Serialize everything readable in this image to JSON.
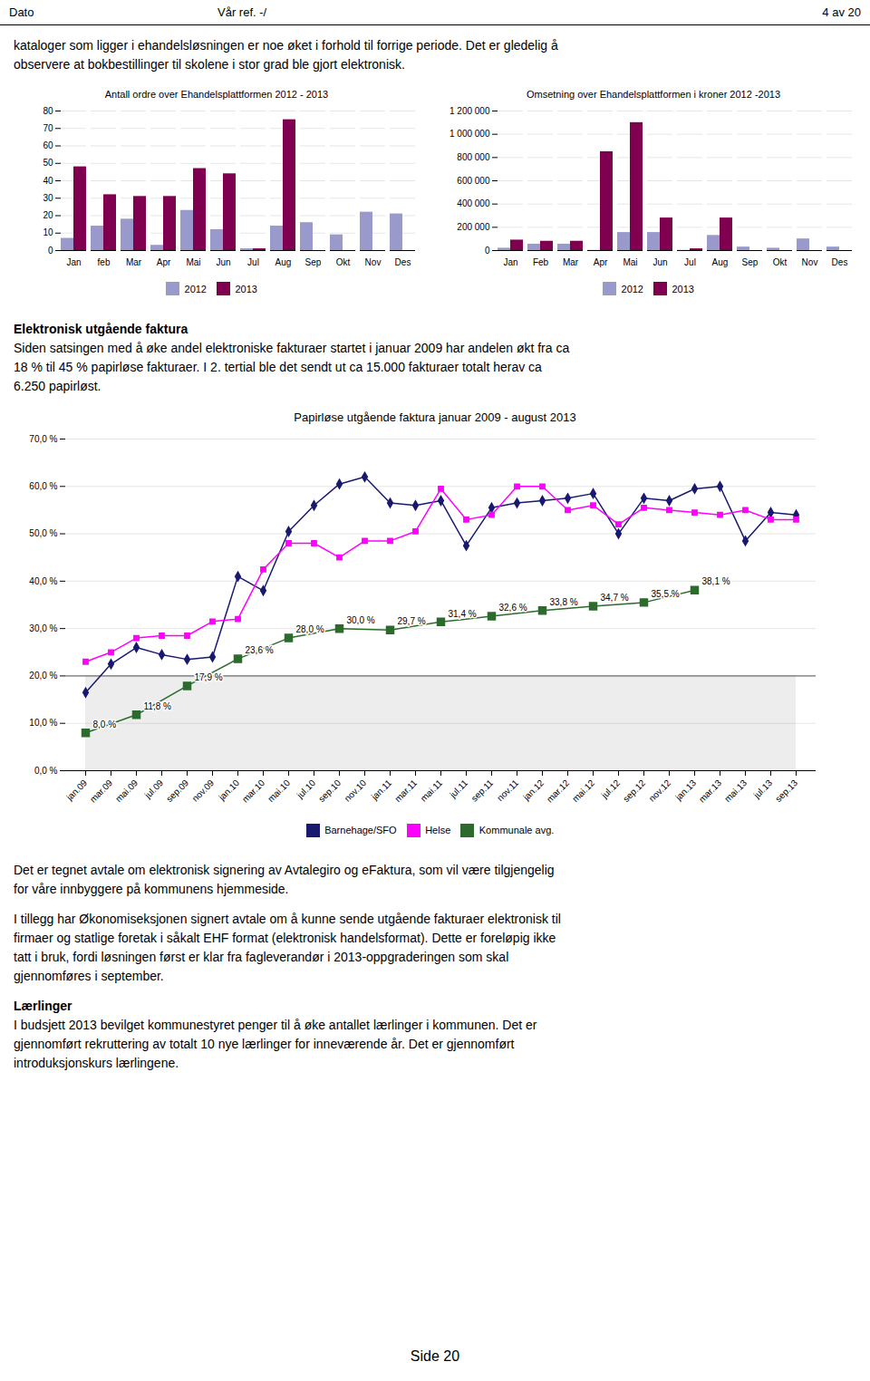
{
  "header_left": "Dato",
  "header_middle": "Vår ref. -/",
  "header_right": "4 av 20",
  "intro": [
    "kataloger som ligger i ehandelsløsningen er noe øket i forhold til forrige periode. Det er gledelig å",
    "observere at bokbestillinger til skolene i stor grad ble gjort elektronisk."
  ],
  "section_title": "Elektronisk utgående faktura",
  "section_text": [
    "Siden satsingen med å øke andel elektroniske fakturaer startet i januar 2009 har andelen økt fra ca",
    "18 % til 45 % papirløse fakturaer. I 2. tertial ble det sendt ut ca 15.000 fakturaer totalt herav ca",
    "6.250 papirløst."
  ],
  "bottom_paragraphs": [
    [
      "Det er tegnet avtale om elektronisk signering av Avtalegiro og eFaktura, som vil være tilgjengelig",
      "for våre innbyggere på kommunens hjemmeside."
    ],
    [
      "I tillegg har Økonomiseksjonen signert avtale om å kunne sende utgående fakturaer elektronisk til",
      "firmaer og statlige foretak i såkalt EHF format (elektronisk handelsformat). Dette er foreløpig ikke",
      "tatt i bruk, fordi løsningen først er klar fra fagleverandør i 2013-oppgraderingen som skal",
      "gjennomføres i september."
    ]
  ],
  "laerlinger_title": "Lærlinger",
  "laerlinger_text": [
    "I budsjett 2013 bevilget kommunestyret penger til å øke antallet lærlinger i kommunen. Det er",
    "gjennomført rekruttering av totalt 10 nye lærlinger for inneværende år. Det er gjennomført",
    "introduksjonskurs lærlingene."
  ],
  "page_number": "Side 20",
  "chart_data": [
    {
      "type": "bar",
      "title": "Antall ordre over Ehandelsplattformen 2012 - 2013",
      "categories": [
        "Jan",
        "feb",
        "Mar",
        "Apr",
        "Mai",
        "Jun",
        "Jul",
        "Aug",
        "Sep",
        "Okt",
        "Nov",
        "Des"
      ],
      "series": [
        {
          "name": "2012",
          "color": "#9999cc",
          "values": [
            7,
            14,
            18,
            3,
            23,
            12,
            1,
            14,
            16,
            9,
            22,
            21
          ]
        },
        {
          "name": "2013",
          "color": "#800050",
          "values": [
            48,
            32,
            31,
            31,
            47,
            44,
            1,
            75,
            0,
            0,
            0,
            0
          ]
        }
      ],
      "ylim": [
        0,
        80
      ],
      "yticks": [
        0,
        10,
        20,
        30,
        40,
        50,
        60,
        70,
        80
      ],
      "grid": true,
      "legend": "bottom"
    },
    {
      "type": "bar",
      "title": "Omsetning over Ehandelsplattformen i kroner 2012 -2013",
      "categories": [
        "Jan",
        "Feb",
        "Mar",
        "Apr",
        "Mai",
        "Jun",
        "Jul",
        "Aug",
        "Sep",
        "Okt",
        "Nov",
        "Des"
      ],
      "series": [
        {
          "name": "2012",
          "color": "#9999cc",
          "values": [
            20000,
            55000,
            55000,
            2000,
            155000,
            155000,
            2000,
            130000,
            30000,
            20000,
            100000,
            30000
          ]
        },
        {
          "name": "2013",
          "color": "#800050",
          "values": [
            90000,
            80000,
            80000,
            850000,
            1100000,
            280000,
            15000,
            280000,
            0,
            0,
            0,
            0
          ]
        }
      ],
      "ylim": [
        0,
        1200000
      ],
      "yticks": [
        0,
        {
          "value": 200000,
          "label": "200 000"
        },
        {
          "value": 400000,
          "label": "400 000"
        },
        {
          "value": 600000,
          "label": "600 000"
        },
        {
          "value": 800000,
          "label": "800 000"
        },
        {
          "value": 1000000,
          "label": "1 000 000"
        },
        {
          "value": 1200000,
          "label": "1 200 000"
        }
      ],
      "grid": true,
      "legend": "bottom"
    },
    {
      "type": "line",
      "title": "Papirløse utgående faktura januar 2009 - august 2013",
      "categories": [
        "jan.09",
        "mar.09",
        "mai.09",
        "jul.09",
        "sep.09",
        "nov.09",
        "jan.10",
        "mar.10",
        "mai.10",
        "jul.10",
        "sep.10",
        "nov.10",
        "jan.11",
        "mar.11",
        "mai.11",
        "jul.11",
        "sep.11",
        "nov.11",
        "jan.12",
        "mar.12",
        "mai.12",
        "jul.12",
        "sep.12",
        "nov.12",
        "jan.13",
        "mar.13",
        "mai.13",
        "jul.13",
        "sep.13"
      ],
      "series": [
        {
          "name": "Barnehage/SFO",
          "color": "#191970",
          "marker": "diamond",
          "values": [
            16.5,
            22.5,
            26.0,
            24.5,
            23.5,
            24.0,
            41.0,
            38.0,
            50.5,
            56.0,
            60.5,
            62.0,
            56.5,
            56.0,
            57.0,
            47.5,
            55.5,
            56.5,
            57.0,
            57.5,
            58.5,
            50.0,
            57.5,
            57.0,
            59.5,
            60.0,
            48.5,
            54.5,
            54.0
          ]
        },
        {
          "name": "Helse",
          "color": "#ff00ff",
          "marker": "square",
          "values": [
            23.0,
            25.0,
            28.0,
            28.5,
            28.5,
            31.5,
            32.0,
            42.5,
            48.0,
            48.0,
            45.0,
            48.5,
            48.5,
            50.5,
            59.5,
            53.0,
            54.0,
            60.0,
            60.0,
            55.0,
            56.0,
            52.0,
            55.5,
            55.0,
            54.5,
            54.0,
            55.0,
            53.0,
            53.0
          ]
        },
        {
          "name": "Kommunale avg.",
          "color": "#2d6a2d",
          "marker": "square",
          "data_labels": true,
          "x": [
            "jan.09",
            "mai.09",
            "sep.09",
            "jan.10",
            "mai.10",
            "sep.10",
            "jan.11",
            "mai.11",
            "sep.11",
            "jan.12",
            "mai.12",
            "sep.12",
            "jan.13"
          ],
          "values": [
            8.0,
            11.8,
            17.9,
            23.6,
            28.0,
            30.0,
            29.7,
            31.4,
            32.6,
            33.8,
            34.7,
            35.5,
            38.1
          ],
          "value_labels": [
            "8,0 %",
            "11,8 %",
            "17,9 %",
            "23,6 %",
            "28,0 %",
            "30,0 %",
            "29,7 %",
            "31,4 %",
            "32,6 %",
            "33,8 %",
            "34,7 %",
            "35,5 %",
            "38,1 %"
          ]
        }
      ],
      "ylim": [
        0,
        70
      ],
      "yticks": [
        {
          "value": 0,
          "label": "0,0 %"
        },
        {
          "value": 10,
          "label": "10,0 %"
        },
        {
          "value": 20,
          "label": "20,0 %"
        },
        {
          "value": 30,
          "label": "30,0 %"
        },
        {
          "value": 40,
          "label": "40,0 %"
        },
        {
          "value": 50,
          "label": "50,0 %"
        },
        {
          "value": 60,
          "label": "60,0 %"
        },
        {
          "value": 70,
          "label": "70,0 %"
        }
      ],
      "reference_line": 20,
      "grid": true,
      "legend": "bottom"
    }
  ]
}
